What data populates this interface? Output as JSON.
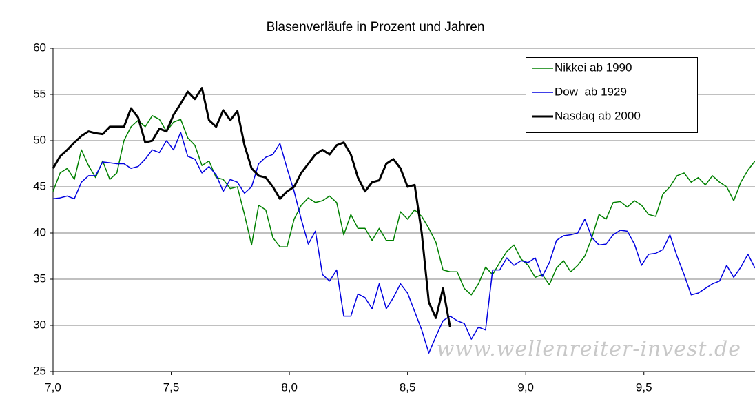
{
  "chart_data": {
    "type": "line",
    "title": "Blasenverläufe in Prozent und Jahren",
    "watermark": "www.wellenreiter-invest.de",
    "x": [
      7.0,
      7.03,
      7.06,
      7.09,
      7.12,
      7.15,
      7.18,
      7.21,
      7.24,
      7.27,
      7.3,
      7.33,
      7.36,
      7.39,
      7.42,
      7.45,
      7.48,
      7.51,
      7.54,
      7.57,
      7.6,
      7.63,
      7.66,
      7.69,
      7.72,
      7.75,
      7.78,
      7.81,
      7.84,
      7.87,
      7.9,
      7.93,
      7.96,
      7.99,
      8.02,
      8.05,
      8.08,
      8.11,
      8.14,
      8.17,
      8.2,
      8.23,
      8.26,
      8.29,
      8.32,
      8.35,
      8.38,
      8.41,
      8.44,
      8.47,
      8.5,
      8.53,
      8.56,
      8.59,
      8.62,
      8.65,
      8.68,
      8.71,
      8.74,
      8.77,
      8.8,
      8.83,
      8.86,
      8.89,
      8.92,
      8.95,
      8.98,
      9.01,
      9.04,
      9.07,
      9.1,
      9.13,
      9.16,
      9.19,
      9.22,
      9.25,
      9.28,
      9.31,
      9.34,
      9.37,
      9.4,
      9.43,
      9.46,
      9.49,
      9.52,
      9.55,
      9.58,
      9.61,
      9.64,
      9.67,
      9.7,
      9.73,
      9.76,
      9.79,
      9.82,
      9.85,
      9.88,
      9.91,
      9.94,
      9.97
    ],
    "series": [
      {
        "name": "Nikkei ab 1990",
        "color": "#008000",
        "width": 1.5,
        "values": [
          44.5,
          46.5,
          47.0,
          45.8,
          49.0,
          47.3,
          46.0,
          47.8,
          45.8,
          46.5,
          50.0,
          51.5,
          52.2,
          51.5,
          52.7,
          52.3,
          51.0,
          52.0,
          52.3,
          50.3,
          49.5,
          47.3,
          47.8,
          46.0,
          45.8,
          44.8,
          45.0,
          42.0,
          38.7,
          43.0,
          42.5,
          39.5,
          38.5,
          38.5,
          41.5,
          43.0,
          43.8,
          43.3,
          43.5,
          44.0,
          43.3,
          39.8,
          42.0,
          40.5,
          40.5,
          39.2,
          40.5,
          39.2,
          39.2,
          42.3,
          41.5,
          42.5,
          41.8,
          40.5,
          39.0,
          36.0,
          35.8,
          35.8,
          34.0,
          33.3,
          34.5,
          36.3,
          35.5,
          36.8,
          38.0,
          38.7,
          37.2,
          36.5,
          35.2,
          35.5,
          34.4,
          36.2,
          37.0,
          35.8,
          36.5,
          37.5,
          39.5,
          42.0,
          41.5,
          43.3,
          43.4,
          42.8,
          43.5,
          43.0,
          42.0,
          41.8,
          44.2,
          45.0,
          46.2,
          46.5,
          45.5,
          46.0,
          45.2,
          46.2,
          45.5,
          45.0,
          43.5,
          45.5,
          46.8,
          47.8
        ]
      },
      {
        "name": "Dow  ab 1929",
        "color": "#0000e0",
        "width": 1.5,
        "values": [
          43.7,
          43.8,
          44.0,
          43.7,
          45.5,
          46.2,
          46.2,
          47.7,
          47.6,
          47.5,
          47.5,
          47.0,
          47.2,
          48.0,
          49.0,
          48.7,
          50.0,
          49.0,
          50.9,
          48.3,
          48.0,
          46.5,
          47.2,
          46.3,
          44.5,
          45.8,
          45.5,
          44.3,
          45.0,
          47.5,
          48.2,
          48.5,
          49.7,
          47.0,
          44.5,
          41.5,
          38.8,
          40.2,
          35.5,
          34.8,
          36.0,
          31.0,
          31.0,
          33.4,
          33.0,
          31.8,
          34.5,
          31.8,
          33.0,
          34.5,
          33.5,
          31.5,
          29.5,
          27.0,
          28.8,
          30.5,
          31.0,
          30.5,
          30.2,
          28.5,
          29.8,
          29.5,
          36.0,
          36.0,
          37.3,
          36.5,
          37.0,
          36.8,
          37.3,
          35.3,
          36.8,
          39.2,
          39.7,
          39.8,
          40.0,
          41.5,
          39.5,
          38.7,
          38.8,
          39.8,
          40.3,
          40.2,
          38.8,
          36.5,
          37.7,
          37.8,
          38.2,
          39.8,
          37.5,
          35.5,
          33.3,
          33.5,
          34.0,
          34.5,
          34.8,
          36.5,
          35.2,
          36.3,
          37.7,
          36.2
        ]
      },
      {
        "name": "Nasdaq ab 2000",
        "color": "#000000",
        "width": 3,
        "values": [
          47.0,
          48.3,
          49.0,
          49.8,
          50.5,
          51.0,
          50.8,
          50.7,
          51.5,
          51.5,
          51.5,
          53.5,
          52.5,
          49.8,
          50.0,
          51.3,
          51.0,
          52.8,
          54.0,
          55.3,
          54.5,
          55.7,
          52.2,
          51.5,
          53.3,
          52.2,
          53.2,
          49.5,
          47.0,
          46.2,
          46.0,
          45.0,
          43.7,
          44.5,
          45.0,
          46.5,
          47.5,
          48.5,
          49.0,
          48.5,
          49.5,
          49.8,
          48.5,
          46.0,
          44.5,
          45.5,
          45.7,
          47.5,
          48.0,
          47.0,
          45.0,
          45.2,
          40.0,
          32.5,
          30.8,
          34.0,
          29.8,
          null,
          null,
          null,
          null,
          null,
          null,
          null,
          null,
          null,
          null,
          null,
          null,
          null,
          null,
          null,
          null,
          null,
          null,
          null,
          null,
          null,
          null,
          null,
          null,
          null,
          null,
          null,
          null,
          null,
          null,
          null,
          null,
          null,
          null,
          null,
          null,
          null,
          null,
          null,
          null,
          null,
          null,
          null
        ]
      }
    ],
    "xlim": [
      7.0,
      9.97
    ],
    "xticks": [
      {
        "value": 7.0,
        "label": "7,0"
      },
      {
        "value": 7.5,
        "label": "7,5"
      },
      {
        "value": 8.0,
        "label": "8,0"
      },
      {
        "value": 8.5,
        "label": "8,5"
      },
      {
        "value": 9.0,
        "label": "9,0"
      },
      {
        "value": 9.5,
        "label": "9,5"
      }
    ],
    "ylim": [
      25,
      60
    ],
    "yticks": [
      25,
      30,
      35,
      40,
      45,
      50,
      55,
      60
    ],
    "grid": true,
    "legend": "upper right"
  }
}
